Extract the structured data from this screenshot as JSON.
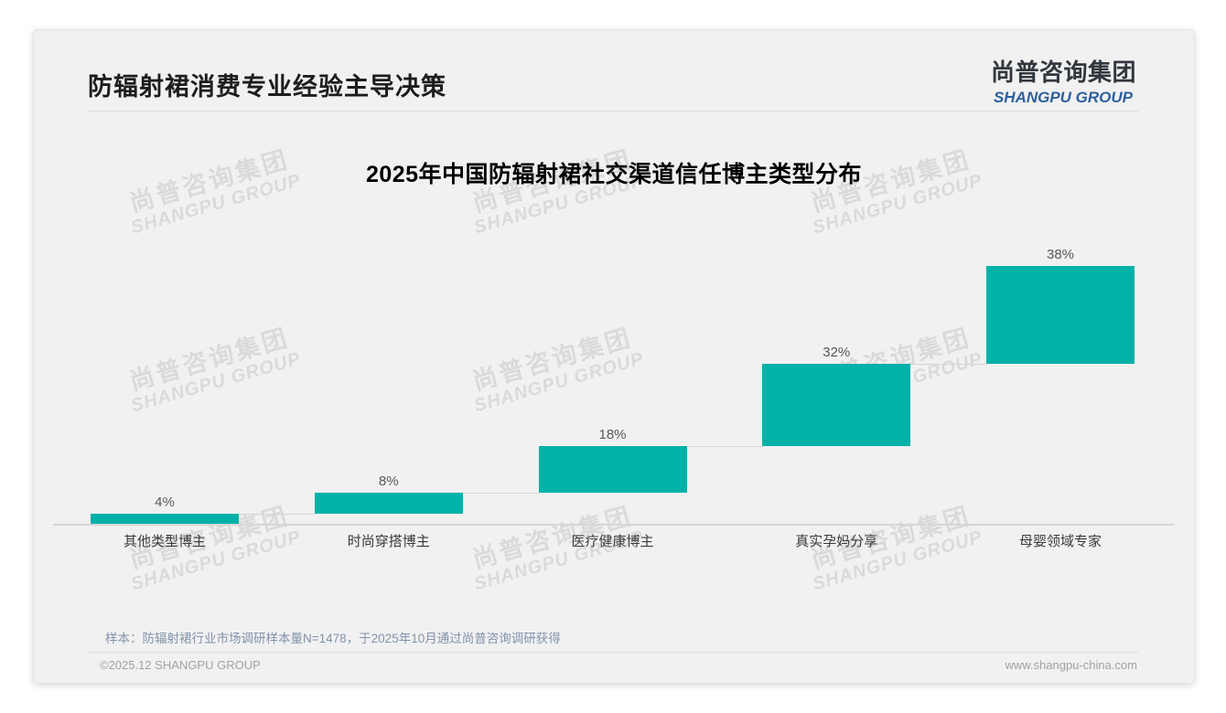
{
  "page": {
    "title": "防辐射裙消费专业经验主导决策",
    "logo": {
      "cn": "尚普咨询集团",
      "en": "SHANGPU GROUP"
    },
    "watermark": {
      "cn": "尚普咨询集团",
      "en": "SHANGPU GROUP"
    },
    "footnote": "样本：防辐射裙行业市场调研样本量N=1478，于2025年10月通过尚普咨询调研获得",
    "footer": {
      "left": "©2025.12 SHANGPU GROUP",
      "right": "www.shangpu-china.com"
    }
  },
  "chart_data": {
    "type": "bar",
    "subtype": "waterfall",
    "title": "2025年中国防辐射裙社交渠道信任博主类型分布",
    "categories": [
      "其他类型博主",
      "时尚穿搭博主",
      "医疗健康博主",
      "真实孕妈分享",
      "母婴领域专家"
    ],
    "values": [
      4,
      8,
      18,
      32,
      38
    ],
    "value_labels": [
      "4%",
      "8%",
      "18%",
      "32%",
      "38%"
    ],
    "cumulative_start": [
      0,
      4,
      12,
      30,
      62
    ],
    "unit": "%",
    "ylim": [
      0,
      100
    ],
    "bar_color": "#00B1A8",
    "connector_color": "#D4D4D4",
    "axis_line": true,
    "gridlines": false,
    "legend": false
  }
}
